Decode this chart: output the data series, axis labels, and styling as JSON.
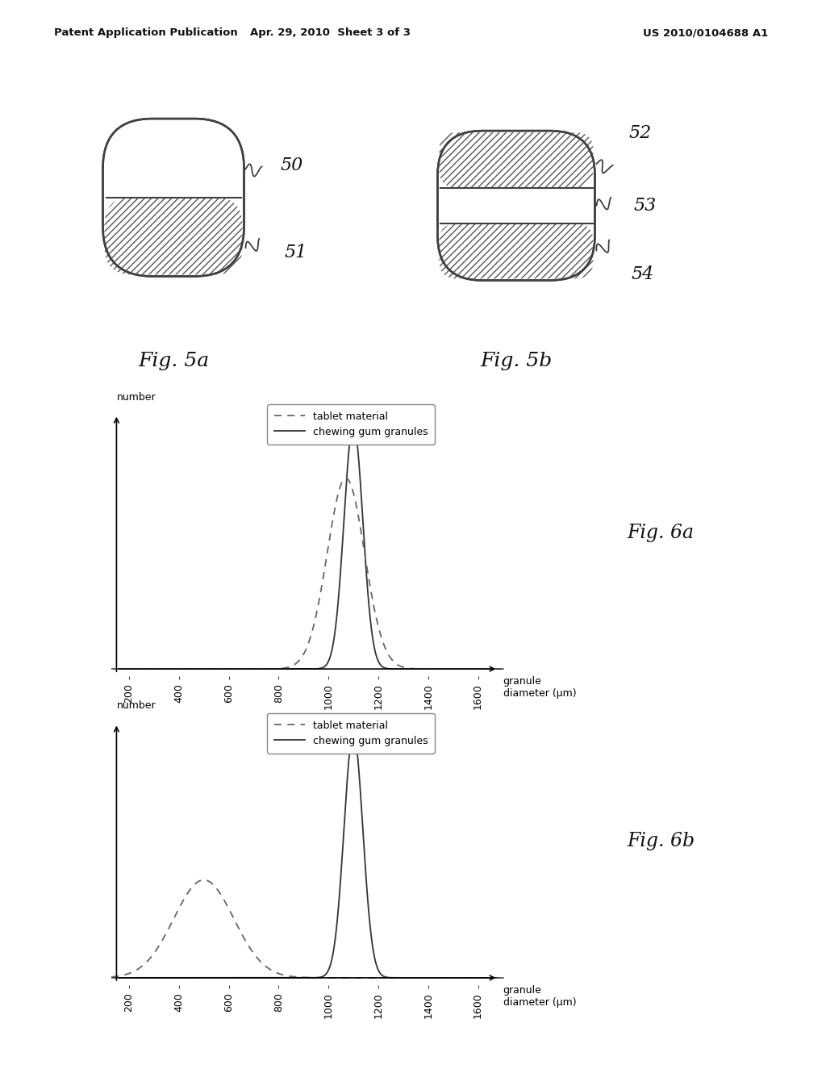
{
  "header_left": "Patent Application Publication",
  "header_mid": "Apr. 29, 2010  Sheet 3 of 3",
  "header_right": "US 2010/0104688 A1",
  "fig5a_label": "Fig. 5a",
  "fig5b_label": "Fig. 5b",
  "fig6a_label": "Fig. 6a",
  "fig6b_label": "Fig. 6b",
  "ref_50": "50",
  "ref_51": "51",
  "ref_52": "52",
  "ref_53": "53",
  "ref_54": "54",
  "ylabel": "number",
  "xlabel": "granule\ndiameter (μm)",
  "xtick_labels": [
    "200",
    "400",
    "600",
    "800",
    "1000",
    "1200",
    "1400",
    "1600"
  ],
  "legend_tablet": "tablet material",
  "legend_gum": "chewing gum granules",
  "bg_color": "#ffffff",
  "fig6a_gum_mu": 1100,
  "fig6a_gum_sigma": 38,
  "fig6a_gum_amp": 1.0,
  "fig6a_tablet_mu": 1070,
  "fig6a_tablet_sigma": 75,
  "fig6a_tablet_amp": 0.78,
  "fig6b_gum_mu": 1100,
  "fig6b_gum_sigma": 38,
  "fig6b_gum_amp": 1.0,
  "fig6b_tablet_mu": 500,
  "fig6b_tablet_sigma": 120,
  "fig6b_tablet_amp": 0.4
}
